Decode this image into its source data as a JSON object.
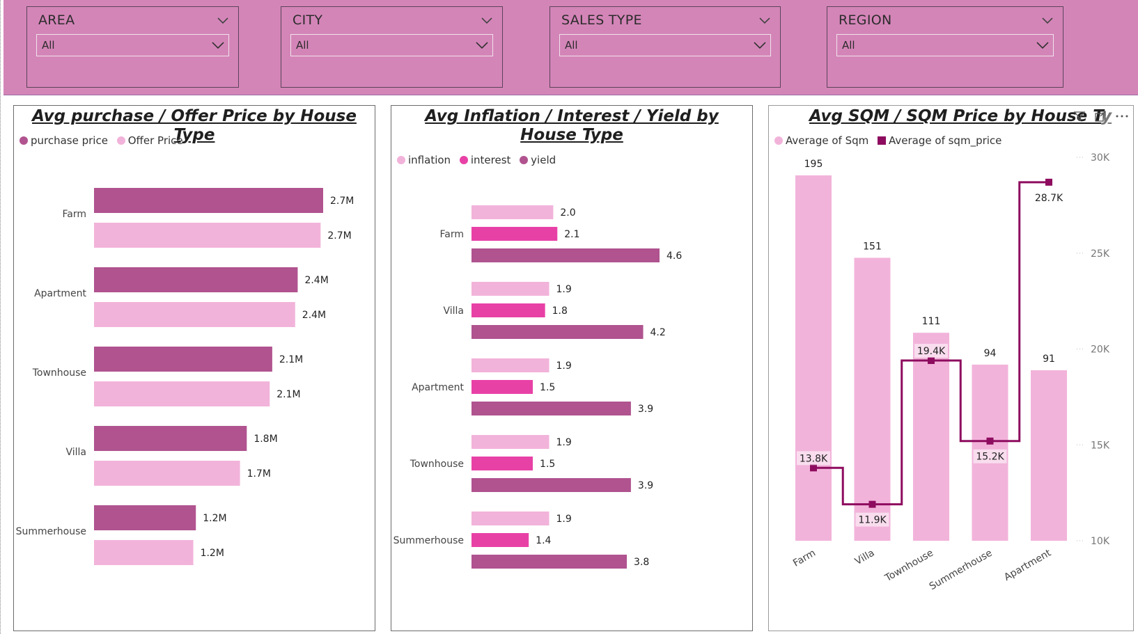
{
  "colors": {
    "filter_bg": "#d485b8",
    "purchase": "#b0538f",
    "offer": "#f2b3da",
    "inflation": "#f2b3da",
    "interest": "#e841a6",
    "yield": "#b0538f",
    "sqm_bar": "#f2b3da",
    "sqm_line": "#8e0c5f"
  },
  "filters": [
    {
      "title": "AREA",
      "value": "All"
    },
    {
      "title": "CITY",
      "value": "All"
    },
    {
      "title": "SALES TYPE",
      "value": "All"
    },
    {
      "title": "REGION",
      "value": "All"
    }
  ],
  "charts": {
    "purchase": {
      "title": "Avg purchase / Offer Price by House Type",
      "legend": [
        "purchase price",
        "Offer Price"
      ]
    },
    "inflation": {
      "title": "Avg Inflation / Interest / Yield by House Type",
      "legend": [
        "inflation",
        "interest",
        "yield"
      ]
    },
    "sqm": {
      "title": "Avg SQM / SQM Price by House T",
      "title_clip": "y",
      "legend": [
        "Average of Sqm",
        "Average of sqm_price"
      ],
      "icons": [
        "filter-icon",
        "focus-mode-icon",
        "more-options-icon"
      ]
    }
  },
  "chart_data": [
    {
      "type": "bar",
      "orientation": "horizontal",
      "title": "Avg purchase / Offer Price by House Type",
      "categories": [
        "Farm",
        "Apartment",
        "Townhouse",
        "Villa",
        "Summerhouse"
      ],
      "series": [
        {
          "name": "purchase price",
          "values": [
            2.7,
            2.4,
            2.1,
            1.8,
            1.2
          ],
          "labels": [
            "2.7M",
            "2.4M",
            "2.1M",
            "1.8M",
            "1.2M"
          ]
        },
        {
          "name": "Offer Price",
          "values": [
            2.67,
            2.37,
            2.07,
            1.72,
            1.17
          ],
          "labels": [
            "2.7M",
            "2.4M",
            "2.1M",
            "1.7M",
            "1.2M"
          ]
        }
      ],
      "xlim": [
        0,
        2.7
      ],
      "legend_position": "top-left"
    },
    {
      "type": "bar",
      "orientation": "horizontal",
      "title": "Avg Inflation / Interest / Yield by House Type",
      "categories": [
        "Farm",
        "Villa",
        "Apartment",
        "Townhouse",
        "Summerhouse"
      ],
      "series": [
        {
          "name": "inflation",
          "values": [
            2.0,
            1.9,
            1.9,
            1.9,
            1.9
          ],
          "labels": [
            "2.0",
            "1.9",
            "1.9",
            "1.9",
            "1.9"
          ]
        },
        {
          "name": "interest",
          "values": [
            2.1,
            1.8,
            1.5,
            1.5,
            1.4
          ],
          "labels": [
            "2.1",
            "1.8",
            "1.5",
            "1.5",
            "1.4"
          ]
        },
        {
          "name": "yield",
          "values": [
            4.6,
            4.2,
            3.9,
            3.9,
            3.8
          ],
          "labels": [
            "4.6",
            "4.2",
            "3.9",
            "3.9",
            "3.8"
          ]
        }
      ],
      "xlim": [
        0,
        4.6
      ],
      "legend_position": "top-left"
    },
    {
      "type": "bar",
      "subtype": "combo-bar-line",
      "title": "Avg SQM / SQM Price by House Type",
      "categories": [
        "Farm",
        "Villa",
        "Townhouse",
        "Summerhouse",
        "Apartment"
      ],
      "series": [
        {
          "name": "Average of Sqm",
          "type": "bar",
          "values": [
            195,
            151,
            111,
            94,
            91
          ],
          "labels": [
            "195",
            "151",
            "111",
            "94",
            "91"
          ]
        },
        {
          "name": "Average of sqm_price",
          "type": "line",
          "values": [
            13800,
            11900,
            19400,
            15200,
            28700
          ],
          "labels": [
            "13.8K",
            "11.9K",
            "19.4K",
            "15.2K",
            "28.7K"
          ],
          "axis": "right"
        }
      ],
      "y_left_lim": [
        0,
        195
      ],
      "y_right_lim": [
        10000,
        30000
      ],
      "y_right_ticks": [
        "10K",
        "15K",
        "20K",
        "25K",
        "30K"
      ],
      "legend_position": "top-left"
    }
  ]
}
